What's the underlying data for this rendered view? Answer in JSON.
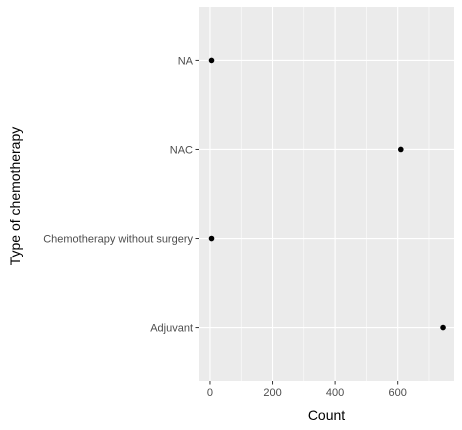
{
  "chart_data": {
    "type": "scatter",
    "xlabel": "Count",
    "ylabel": "Type of chemotherapy",
    "categories": [
      "Adjuvant",
      "Chemotherapy without surgery",
      "NAC",
      "NA"
    ],
    "values": [
      745,
      5,
      610,
      5
    ],
    "xlim": [
      -35,
      780
    ],
    "xticks": [
      0,
      200,
      400,
      600
    ],
    "grid": true,
    "legend": "none"
  },
  "colors": {
    "panel_background": "#ebebeb",
    "gridline": "#ffffff",
    "point": "#000000"
  }
}
